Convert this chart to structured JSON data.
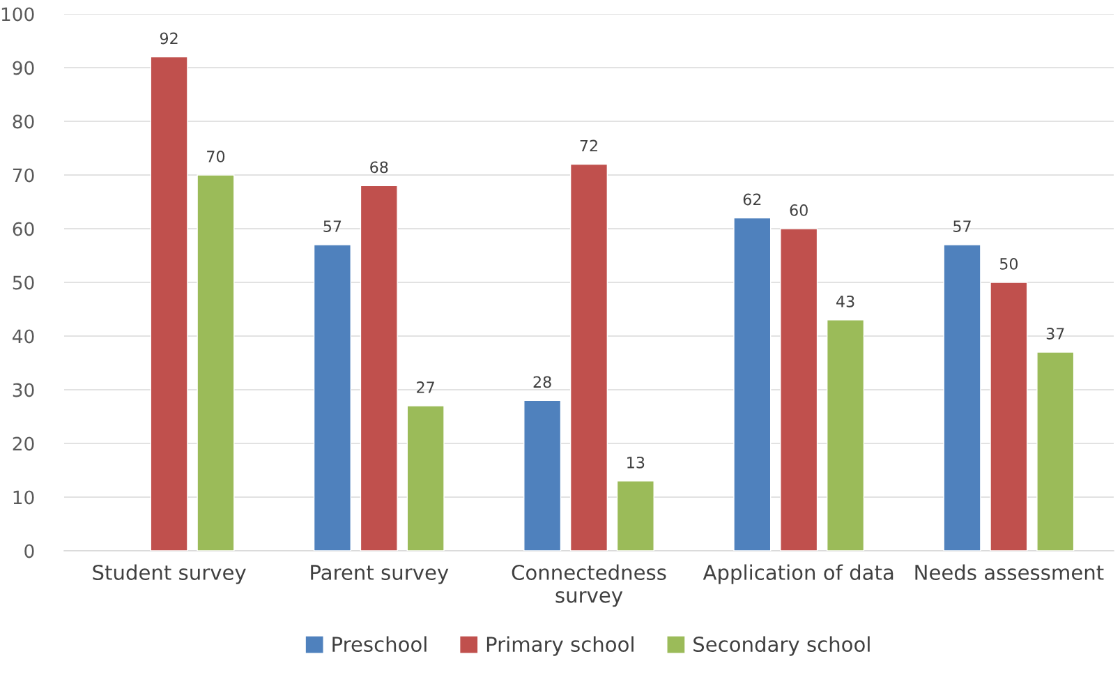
{
  "chart_data": {
    "type": "bar",
    "categories": [
      "Student survey",
      "Parent survey",
      "Connectedness survey",
      "Application of data",
      "Needs assessment"
    ],
    "series": [
      {
        "name": "Preschool",
        "color": "#4f81bd",
        "values": [
          null,
          57,
          28,
          62,
          57
        ]
      },
      {
        "name": "Primary school",
        "color": "#c0504d",
        "values": [
          92,
          68,
          72,
          60,
          50
        ]
      },
      {
        "name": "Secondary school",
        "color": "#9bbb59",
        "values": [
          70,
          27,
          13,
          43,
          37
        ]
      }
    ],
    "ylim": [
      0,
      100
    ],
    "yticks": [
      0,
      10,
      20,
      30,
      40,
      50,
      60,
      70,
      80,
      90,
      100
    ],
    "grid": "y",
    "legend": "bottom",
    "data_labels": true
  }
}
